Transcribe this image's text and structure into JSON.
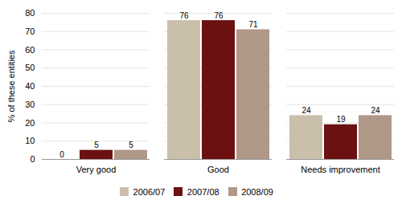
{
  "chart_data": {
    "type": "bar",
    "categories": [
      "Very good",
      "Good",
      "Needs improvement"
    ],
    "series": [
      {
        "name": "2006/07",
        "color": "#c9bfab",
        "values": [
          0,
          76,
          24
        ]
      },
      {
        "name": "2007/08",
        "color": "#6b1111",
        "values": [
          5,
          76,
          19
        ]
      },
      {
        "name": "2008/09",
        "color": "#b09888",
        "values": [
          5,
          71,
          24
        ]
      }
    ],
    "ylabel": "% of these entities",
    "ylim": [
      0,
      80
    ],
    "yticks": [
      0,
      10,
      20,
      30,
      40,
      50,
      60,
      70,
      80
    ],
    "grid": true,
    "legend": "bottom",
    "data_labels": true
  }
}
